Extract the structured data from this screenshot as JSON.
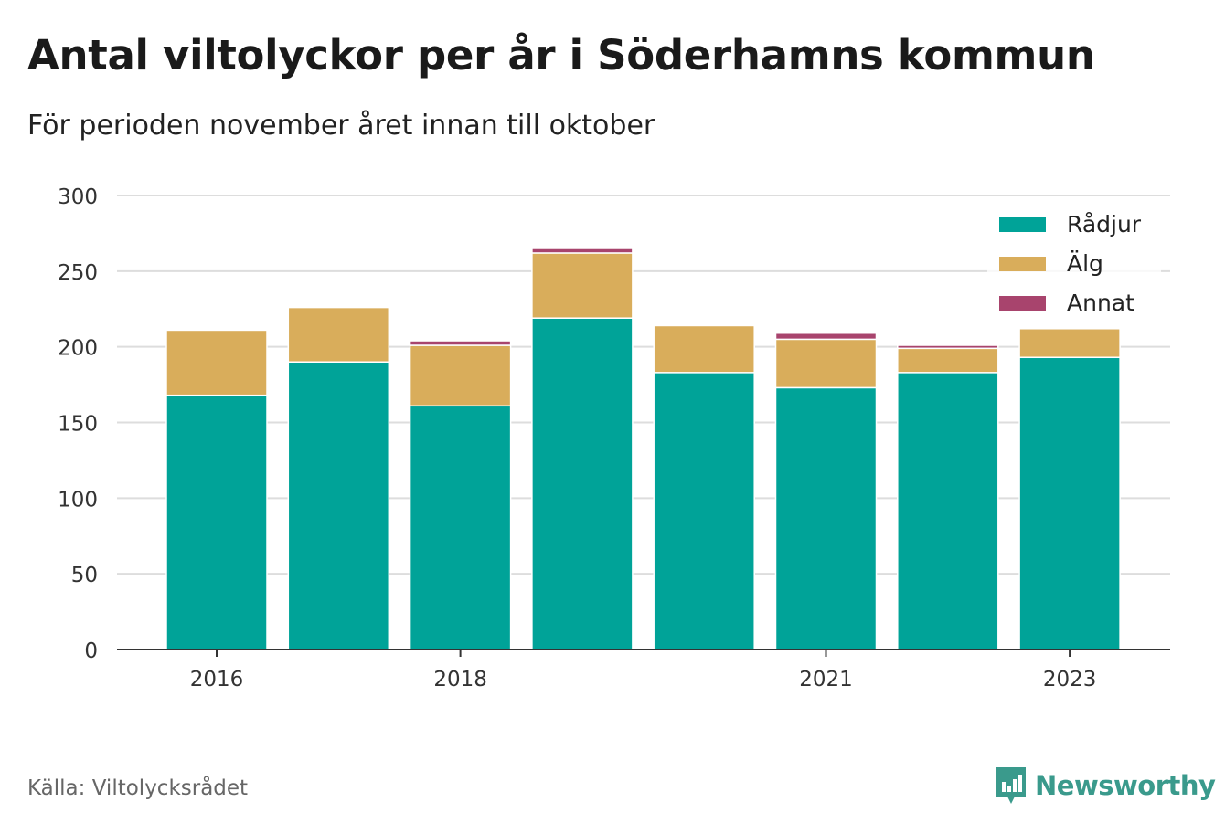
{
  "header": {
    "title": "Antal viltolyckor per år i Söderhamns kommun",
    "subtitle": "För perioden november året innan till oktober"
  },
  "footer": {
    "source": "Källa: Viltolycksrådet",
    "brand": "Newsworthy"
  },
  "colors": {
    "Rådjur": "#00a398",
    "Älg": "#d9ad5b",
    "Annat": "#a8446d",
    "grid": "#dddddd",
    "axis": "#333333"
  },
  "chart_data": {
    "type": "bar",
    "stacked": true,
    "categories": [
      "2016",
      "2017",
      "2018",
      "2019",
      "2020",
      "2021",
      "2022",
      "2023"
    ],
    "x_tick_labels": [
      "2016",
      "2018",
      "2021",
      "2023"
    ],
    "series": [
      {
        "name": "Rådjur",
        "values": [
          168,
          190,
          161,
          219,
          183,
          173,
          183,
          193
        ]
      },
      {
        "name": "Älg",
        "values": [
          43,
          36,
          40,
          43,
          31,
          32,
          16,
          19
        ]
      },
      {
        "name": "Annat",
        "values": [
          0,
          0,
          3,
          3,
          0,
          4,
          2,
          0
        ]
      }
    ],
    "ylim": [
      0,
      300
    ],
    "yticks": [
      0,
      50,
      100,
      150,
      200,
      250,
      300
    ],
    "grid": true,
    "legend_position": "top-right"
  }
}
